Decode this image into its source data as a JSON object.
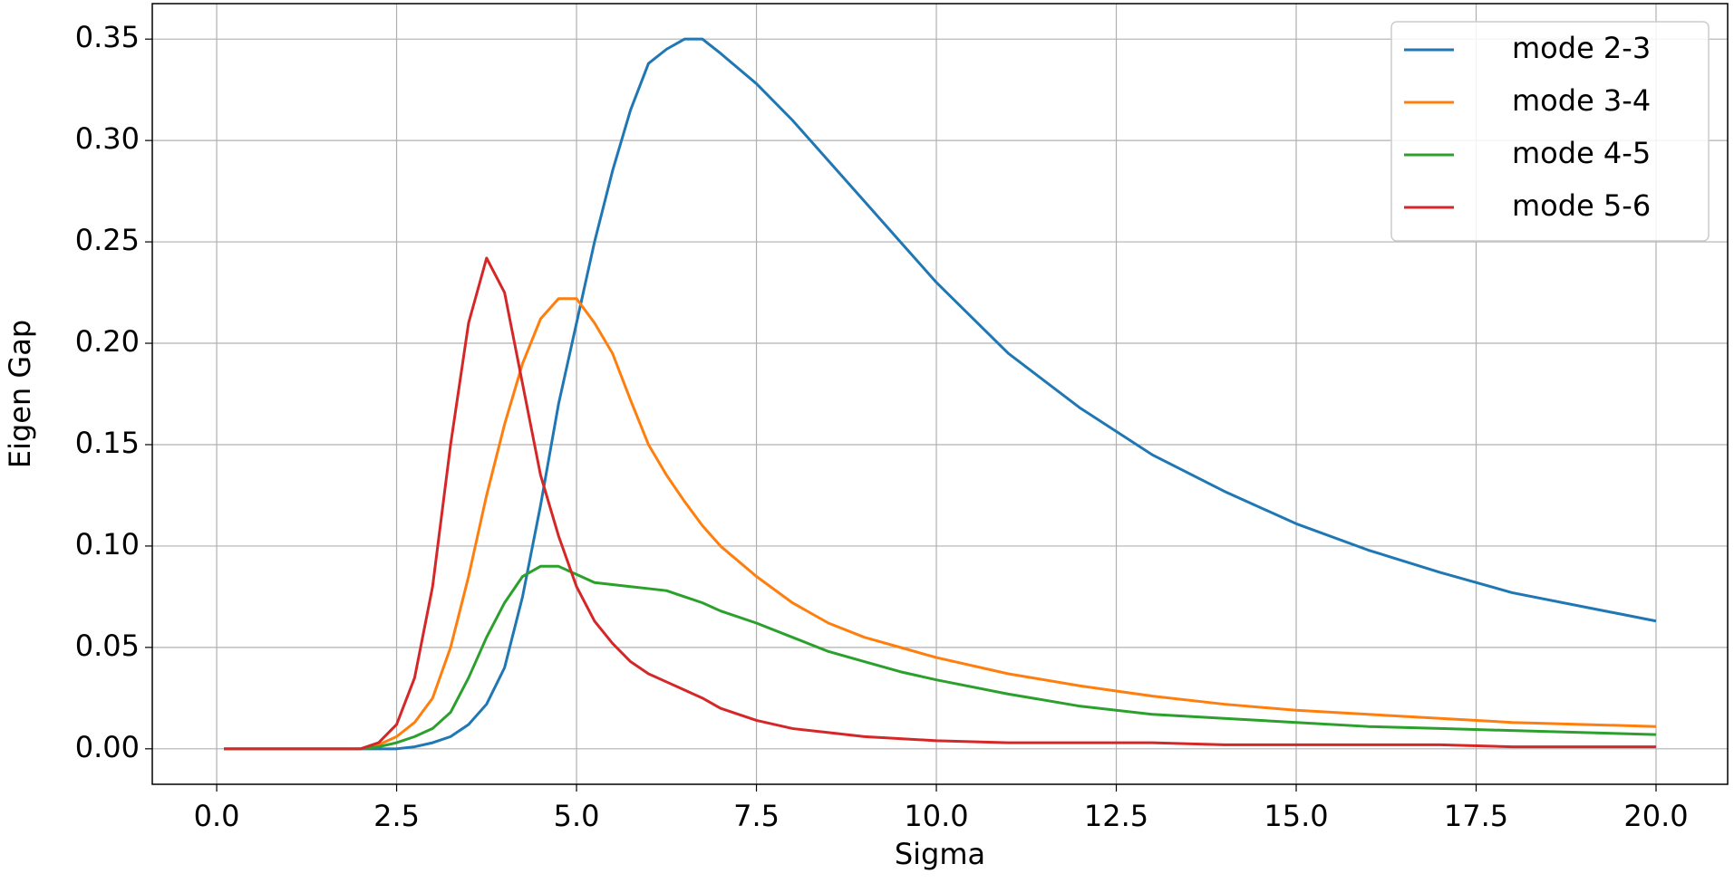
{
  "chart_data": {
    "type": "line",
    "x_label": "Sigma",
    "y_label": "Eigen Gap",
    "x": [
      0.1,
      1,
      2,
      2.25,
      2.5,
      2.75,
      3,
      3.25,
      3.5,
      3.75,
      4,
      4.25,
      4.5,
      4.75,
      5,
      5.25,
      5.5,
      5.75,
      6,
      6.25,
      6.5,
      6.75,
      7,
      7.5,
      8,
      8.5,
      9,
      9.5,
      10,
      11,
      12,
      13,
      14,
      15,
      16,
      17,
      18,
      19,
      20
    ],
    "series": [
      {
        "name": "mode 2-3",
        "color": "#1f77b4",
        "values": [
          0,
          0,
          0,
          0,
          0,
          0.001,
          0.003,
          0.006,
          0.012,
          0.022,
          0.04,
          0.075,
          0.12,
          0.17,
          0.21,
          0.25,
          0.285,
          0.315,
          0.338,
          0.345,
          0.35,
          0.35,
          0.343,
          0.328,
          0.31,
          0.29,
          0.27,
          0.25,
          0.23,
          0.195,
          0.168,
          0.145,
          0.127,
          0.111,
          0.098,
          0.087,
          0.077,
          0.07,
          0.063
        ]
      },
      {
        "name": "mode 3-4",
        "color": "#ff7f0e",
        "values": [
          0,
          0,
          0,
          0.002,
          0.006,
          0.013,
          0.025,
          0.05,
          0.085,
          0.125,
          0.16,
          0.19,
          0.212,
          0.222,
          0.222,
          0.21,
          0.195,
          0.172,
          0.15,
          0.135,
          0.122,
          0.11,
          0.1,
          0.085,
          0.072,
          0.062,
          0.055,
          0.05,
          0.045,
          0.037,
          0.031,
          0.026,
          0.022,
          0.019,
          0.017,
          0.015,
          0.013,
          0.012,
          0.011
        ]
      },
      {
        "name": "mode 4-5",
        "color": "#2ca02c",
        "values": [
          0,
          0,
          0,
          0.001,
          0.003,
          0.006,
          0.01,
          0.018,
          0.035,
          0.055,
          0.072,
          0.085,
          0.09,
          0.09,
          0.086,
          0.082,
          0.081,
          0.08,
          0.079,
          0.078,
          0.075,
          0.072,
          0.068,
          0.062,
          0.055,
          0.048,
          0.043,
          0.038,
          0.034,
          0.027,
          0.021,
          0.017,
          0.015,
          0.013,
          0.011,
          0.01,
          0.009,
          0.008,
          0.007
        ]
      },
      {
        "name": "mode 5-6",
        "color": "#d62728",
        "values": [
          0,
          0,
          0,
          0.003,
          0.012,
          0.035,
          0.08,
          0.15,
          0.21,
          0.242,
          0.225,
          0.18,
          0.135,
          0.105,
          0.08,
          0.063,
          0.052,
          0.043,
          0.037,
          0.033,
          0.029,
          0.025,
          0.02,
          0.014,
          0.01,
          0.008,
          0.006,
          0.005,
          0.004,
          0.003,
          0.003,
          0.003,
          0.002,
          0.002,
          0.002,
          0.002,
          0.001,
          0.001,
          0.001
        ]
      }
    ],
    "xlim": [
      -0.895,
      20.995
    ],
    "xticks": [
      {
        "value": 0,
        "label": "0.0"
      },
      2.5,
      {
        "value": 5,
        "label": "5.0"
      },
      7.5,
      {
        "value": 10,
        "label": "10.0"
      },
      12.5,
      {
        "value": 15,
        "label": "15.0"
      },
      17.5,
      {
        "value": 20,
        "label": "20.0"
      }
    ],
    "ylim": [
      -0.0175,
      0.3675
    ],
    "yticks": [
      {
        "value": 0,
        "label": "0.00"
      },
      0.05,
      {
        "value": 0.1,
        "label": "0.10"
      },
      0.15,
      {
        "value": 0.2,
        "label": "0.20"
      },
      0.25,
      {
        "value": 0.3,
        "label": "0.30"
      },
      0.35
    ],
    "grid": true,
    "legend": "upper right"
  }
}
